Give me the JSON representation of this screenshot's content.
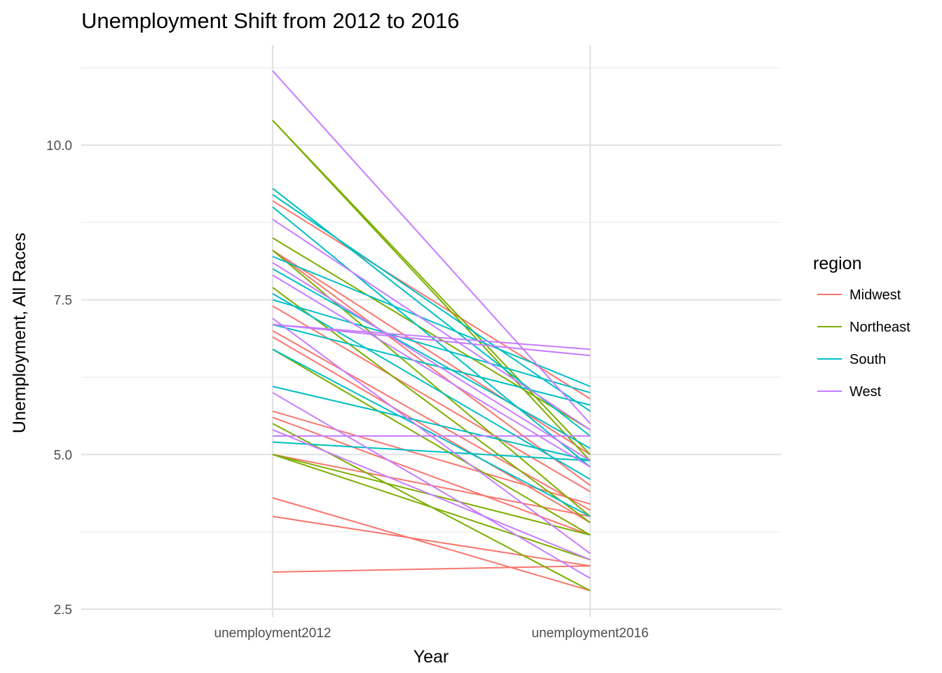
{
  "chart_data": {
    "type": "line",
    "title": "Unemployment Shift from 2012 to 2016",
    "xlabel": "Year",
    "ylabel": "Unemployment, All Races",
    "categories": [
      "unemployment2012",
      "unemployment2016"
    ],
    "ylim": [
      2.5,
      11.2
    ],
    "y_ticks": [
      "2.5",
      "5.0",
      "7.5",
      "10.0"
    ],
    "grid": true,
    "legend": {
      "title": "region",
      "position": "right",
      "items": [
        {
          "name": "Midwest",
          "color": "#F8766D"
        },
        {
          "name": "Northeast",
          "color": "#7CAE00"
        },
        {
          "name": "South",
          "color": "#00BFC4"
        },
        {
          "name": "West",
          "color": "#C77CFF"
        }
      ]
    },
    "lines": [
      {
        "region": "Midwest",
        "values": [
          9.1,
          5.9
        ]
      },
      {
        "region": "Midwest",
        "values": [
          8.3,
          5.0
        ]
      },
      {
        "region": "Midwest",
        "values": [
          8.3,
          4.5
        ]
      },
      {
        "region": "Midwest",
        "values": [
          7.4,
          4.4
        ]
      },
      {
        "region": "Midwest",
        "values": [
          7.0,
          4.1
        ]
      },
      {
        "region": "Midwest",
        "values": [
          6.9,
          3.9
        ]
      },
      {
        "region": "Midwest",
        "values": [
          5.7,
          4.2
        ]
      },
      {
        "region": "Midwest",
        "values": [
          5.6,
          3.7
        ]
      },
      {
        "region": "Midwest",
        "values": [
          5.0,
          4.0
        ]
      },
      {
        "region": "Midwest",
        "values": [
          4.3,
          2.8
        ]
      },
      {
        "region": "Midwest",
        "values": [
          4.0,
          3.2
        ]
      },
      {
        "region": "Midwest",
        "values": [
          3.1,
          3.2
        ]
      },
      {
        "region": "Northeast",
        "values": [
          10.4,
          5.0
        ]
      },
      {
        "region": "Northeast",
        "values": [
          10.4,
          4.9
        ]
      },
      {
        "region": "Northeast",
        "values": [
          8.5,
          5.4
        ]
      },
      {
        "region": "Northeast",
        "values": [
          8.3,
          4.0
        ]
      },
      {
        "region": "Northeast",
        "values": [
          7.7,
          3.9
        ]
      },
      {
        "region": "Northeast",
        "values": [
          6.7,
          3.7
        ]
      },
      {
        "region": "Northeast",
        "values": [
          5.5,
          2.8
        ]
      },
      {
        "region": "Northeast",
        "values": [
          5.0,
          3.7
        ]
      },
      {
        "region": "Northeast",
        "values": [
          5.0,
          3.3
        ]
      },
      {
        "region": "South",
        "values": [
          9.3,
          5.3
        ]
      },
      {
        "region": "South",
        "values": [
          9.2,
          5.7
        ]
      },
      {
        "region": "South",
        "values": [
          9.0,
          4.8
        ]
      },
      {
        "region": "South",
        "values": [
          8.2,
          6.1
        ]
      },
      {
        "region": "South",
        "values": [
          8.0,
          5.1
        ]
      },
      {
        "region": "South",
        "values": [
          7.6,
          4.6
        ]
      },
      {
        "region": "South",
        "values": [
          7.5,
          6.0
        ]
      },
      {
        "region": "South",
        "values": [
          7.1,
          5.8
        ]
      },
      {
        "region": "South",
        "values": [
          6.7,
          4.0
        ]
      },
      {
        "region": "South",
        "values": [
          6.1,
          4.9
        ]
      },
      {
        "region": "South",
        "values": [
          5.2,
          4.9
        ]
      },
      {
        "region": "West",
        "values": [
          11.2,
          5.5
        ]
      },
      {
        "region": "West",
        "values": [
          8.8,
          5.4
        ]
      },
      {
        "region": "West",
        "values": [
          8.1,
          4.9
        ]
      },
      {
        "region": "West",
        "values": [
          7.9,
          4.8
        ]
      },
      {
        "region": "West",
        "values": [
          7.2,
          3.4
        ]
      },
      {
        "region": "West",
        "values": [
          7.1,
          6.7
        ]
      },
      {
        "region": "West",
        "values": [
          7.1,
          6.6
        ]
      },
      {
        "region": "West",
        "values": [
          6.0,
          3.0
        ]
      },
      {
        "region": "West",
        "values": [
          5.4,
          3.3
        ]
      },
      {
        "region": "West",
        "values": [
          5.3,
          5.3
        ]
      }
    ]
  }
}
